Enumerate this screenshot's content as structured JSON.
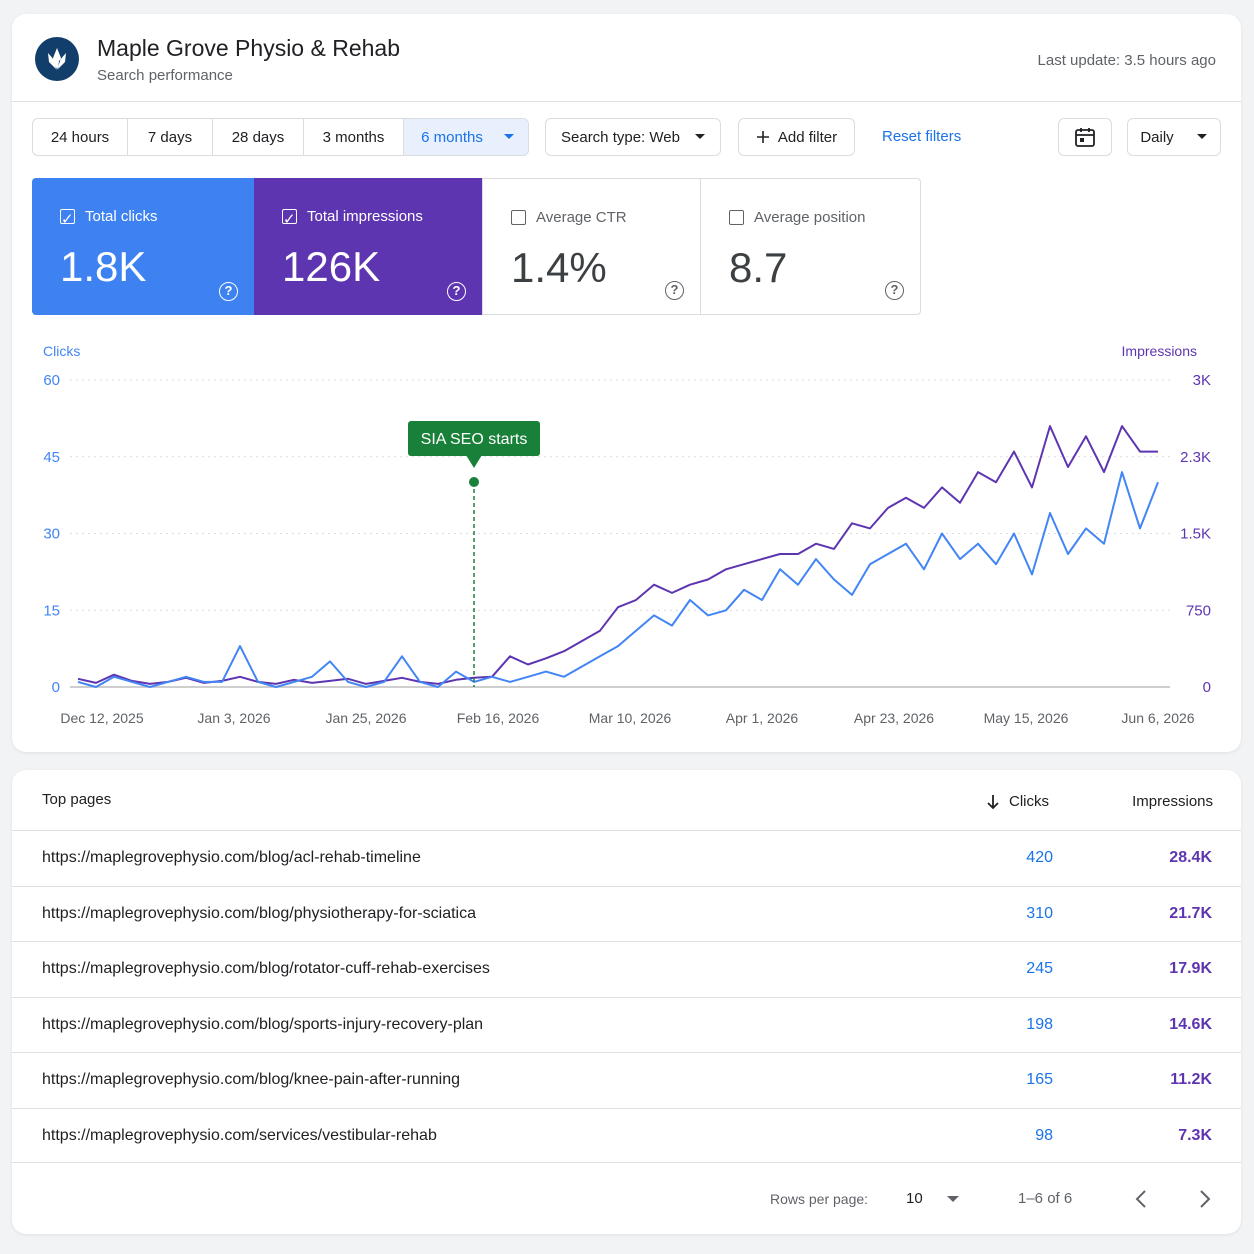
{
  "header": {
    "title": "Maple Grove Physio & Rehab",
    "subtitle": "Search performance",
    "last_update": "Last update: 3.5 hours ago"
  },
  "filters": {
    "ranges": [
      "24 hours",
      "7 days",
      "28 days",
      "3 months",
      "6 months"
    ],
    "search_type": "Search type: Web",
    "add_filter": "Add filter",
    "reset": "Reset filters",
    "granularity": "Daily"
  },
  "metrics": [
    {
      "label": "Total clicks",
      "value": "1.8K"
    },
    {
      "label": "Total impressions",
      "value": "126K"
    },
    {
      "label": "Average CTR",
      "value": "1.4%"
    },
    {
      "label": "Average position",
      "value": "8.7"
    }
  ],
  "chart_data": {
    "type": "line",
    "x": [
      "2025-12-08",
      "2025-12-11",
      "2025-12-14",
      "2025-12-17",
      "2025-12-20",
      "2025-12-23",
      "2025-12-26",
      "2025-12-29",
      "2026-01-01",
      "2026-01-04",
      "2026-01-07",
      "2026-01-10",
      "2026-01-13",
      "2026-01-16",
      "2026-01-19",
      "2026-01-22",
      "2026-01-25",
      "2026-01-28",
      "2026-01-31",
      "2026-02-03",
      "2026-02-06",
      "2026-02-09",
      "2026-02-12",
      "2026-02-15",
      "2026-02-18",
      "2026-02-21",
      "2026-02-24",
      "2026-02-27",
      "2026-03-02",
      "2026-03-05",
      "2026-03-08",
      "2026-03-11",
      "2026-03-14",
      "2026-03-17",
      "2026-03-20",
      "2026-03-23",
      "2026-03-26",
      "2026-03-29",
      "2026-04-01",
      "2026-04-04",
      "2026-04-07",
      "2026-04-10",
      "2026-04-13",
      "2026-04-16",
      "2026-04-19",
      "2026-04-22",
      "2026-04-25",
      "2026-04-28",
      "2026-05-01",
      "2026-05-04",
      "2026-05-07",
      "2026-05-10",
      "2026-05-13",
      "2026-05-16",
      "2026-05-19",
      "2026-05-22",
      "2026-05-25",
      "2026-05-28",
      "2026-05-31",
      "2026-06-03",
      "2026-06-06"
    ],
    "xlim": [
      "2025-12-08",
      "2026-06-06"
    ],
    "xticks": [
      {
        "value": "2025-12-12",
        "label": "Dec 12, 2025"
      },
      {
        "value": "2026-01-03",
        "label": "Jan 3, 2026"
      },
      {
        "value": "2026-01-25",
        "label": "Jan 25, 2026"
      },
      {
        "value": "2026-02-16",
        "label": "Feb 16, 2026"
      },
      {
        "value": "2026-03-10",
        "label": "Mar 10, 2026"
      },
      {
        "value": "2026-04-01",
        "label": "Apr 1, 2026"
      },
      {
        "value": "2026-04-23",
        "label": "Apr 23, 2026"
      },
      {
        "value": "2026-05-15",
        "label": "May 15, 2026"
      },
      {
        "value": "2026-06-06",
        "label": "Jun 6, 2026"
      }
    ],
    "ylim": [
      0,
      60
    ],
    "yticks": [
      0,
      15,
      30,
      45,
      60
    ],
    "y2lim": [
      0,
      3000
    ],
    "y2ticks": [
      0,
      750,
      {
        "value": 1500,
        "label": "1.5K"
      },
      {
        "value": 2250,
        "label": "2.3K"
      },
      {
        "value": 3000,
        "label": "3K"
      }
    ],
    "grid": true,
    "series": [
      {
        "name": "Clicks",
        "color": "#4285f4",
        "values": [
          1,
          0,
          2,
          1,
          0,
          1,
          2,
          1,
          1,
          8,
          1,
          0,
          1,
          2,
          5,
          1,
          0,
          1,
          6,
          1,
          0,
          3,
          1,
          2,
          1,
          2,
          3,
          2,
          4,
          6,
          8,
          11,
          14,
          12,
          17,
          14,
          15,
          19,
          17,
          23,
          20,
          25,
          21,
          18,
          24,
          26,
          28,
          23,
          30,
          25,
          28,
          24,
          30,
          22,
          34,
          26,
          31,
          28,
          42,
          31,
          40
        ]
      },
      {
        "name": "Impressions",
        "color": "#5e35b1",
        "axis": "y2",
        "values": [
          80,
          40,
          120,
          60,
          30,
          50,
          90,
          40,
          60,
          100,
          50,
          30,
          70,
          40,
          60,
          80,
          30,
          60,
          90,
          50,
          30,
          70,
          90,
          100,
          300,
          220,
          280,
          350,
          450,
          550,
          780,
          850,
          1000,
          920,
          1000,
          1050,
          1150,
          1200,
          1250,
          1300,
          1300,
          1400,
          1350,
          1600,
          1550,
          1750,
          1850,
          1750,
          1950,
          1800,
          2100,
          2000,
          2300,
          1950,
          2550,
          2150,
          2450,
          2100,
          2550,
          2300,
          2300
        ]
      }
    ],
    "annotations": [
      {
        "x": "2026-02-12",
        "text": "SIA SEO starts",
        "color": "#188038"
      }
    ]
  },
  "table": {
    "title": "Top pages",
    "columns": [
      "Clicks",
      "Impressions"
    ],
    "rows": [
      [
        "https://maplegrovephysio.com/blog/acl-rehab-timeline",
        420,
        "28.4K"
      ],
      [
        "https://maplegrovephysio.com/blog/physiotherapy-for-sciatica",
        310,
        "21.7K"
      ],
      [
        "https://maplegrovephysio.com/blog/rotator-cuff-rehab-exercises",
        245,
        "17.9K"
      ],
      [
        "https://maplegrovephysio.com/blog/sports-injury-recovery-plan",
        198,
        "14.6K"
      ],
      [
        "https://maplegrovephysio.com/blog/knee-pain-after-running",
        165,
        "11.2K"
      ],
      [
        "https://maplegrovephysio.com/services/vestibular-rehab",
        98,
        "7.3K"
      ]
    ]
  },
  "pagination": {
    "rows_label": "Rows per page:",
    "rows_value": 10,
    "range": "1–6 of 6"
  }
}
